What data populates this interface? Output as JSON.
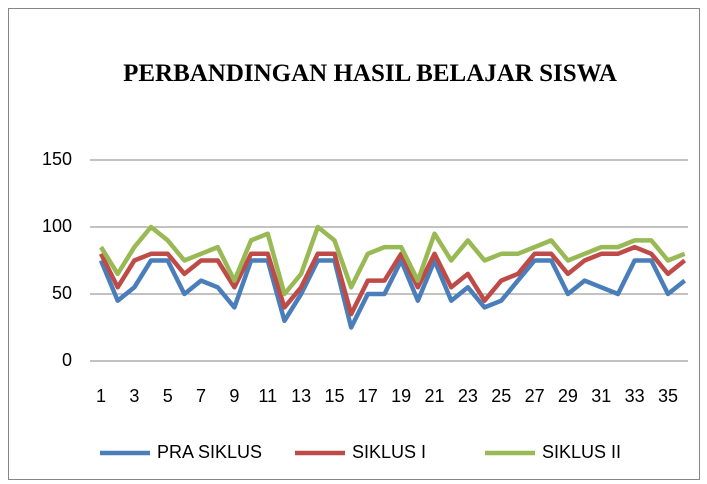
{
  "chart_data": {
    "type": "line",
    "title": "PERBANDINGAN HASIL BELAJAR SISWA",
    "categories": [
      1,
      null,
      3,
      null,
      5,
      null,
      7,
      null,
      9,
      null,
      11,
      null,
      13,
      null,
      15,
      null,
      17,
      null,
      19,
      null,
      21,
      null,
      23,
      null,
      25,
      null,
      27,
      null,
      29,
      null,
      31,
      null,
      33,
      null,
      35,
      null
    ],
    "series": [
      {
        "name": "PRA SIKLUS",
        "color": "#4a7ebb",
        "values": [
          75,
          45,
          55,
          75,
          75,
          50,
          60,
          55,
          40,
          75,
          75,
          30,
          50,
          75,
          75,
          25,
          50,
          50,
          75,
          45,
          75,
          45,
          55,
          40,
          45,
          60,
          75,
          75,
          50,
          60,
          55,
          50,
          75,
          75,
          50,
          60
        ]
      },
      {
        "name": "SIKLUS I",
        "color": "#be4b48",
        "values": [
          80,
          55,
          75,
          80,
          80,
          65,
          75,
          75,
          55,
          80,
          80,
          40,
          55,
          80,
          80,
          35,
          60,
          60,
          80,
          55,
          80,
          55,
          65,
          45,
          60,
          65,
          80,
          80,
          65,
          75,
          80,
          80,
          85,
          80,
          65,
          75
        ]
      },
      {
        "name": "SIKLUS II",
        "color": "#98b954",
        "values": [
          85,
          65,
          85,
          100,
          90,
          75,
          80,
          85,
          60,
          90,
          95,
          50,
          65,
          100,
          90,
          55,
          80,
          85,
          85,
          60,
          95,
          75,
          90,
          75,
          80,
          80,
          85,
          90,
          75,
          80,
          85,
          85,
          90,
          90,
          75,
          80
        ]
      }
    ],
    "ylim": [
      0,
      150
    ],
    "yticks": [
      0,
      50,
      100,
      150
    ],
    "grid": true,
    "legend": "bottom"
  }
}
